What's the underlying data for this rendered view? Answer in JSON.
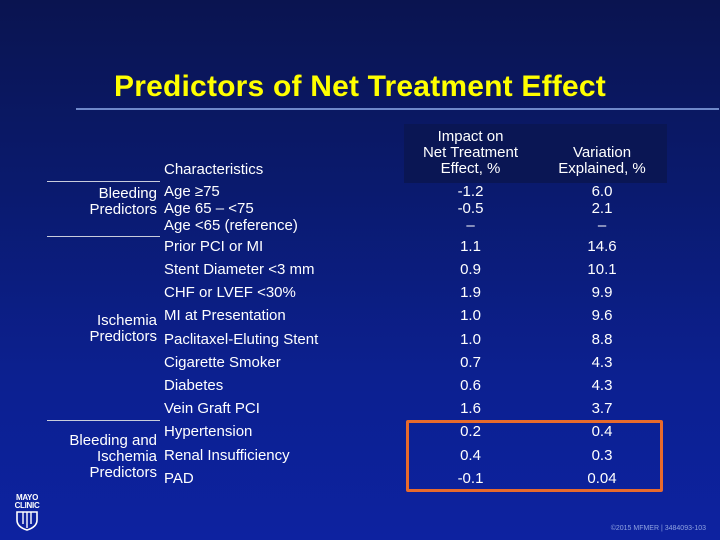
{
  "title": "Predictors of Net Treatment Effect",
  "headers": {
    "characteristics": "Characteristics",
    "impact": [
      "Impact on",
      "Net Treatment",
      "Effect, %"
    ],
    "variation": [
      "Variation",
      "Explained, %"
    ]
  },
  "groups": {
    "bleeding": [
      "Bleeding",
      "Predictors"
    ],
    "ischemia": [
      "Ischemia",
      "Predictors"
    ],
    "both": [
      "Bleeding and",
      "Ischemia",
      "Predictors"
    ]
  },
  "rows": [
    {
      "characteristic": "Age  ≥75",
      "impact": "-1.2",
      "variation": "6.0"
    },
    {
      "characteristic": "Age 65 – <75",
      "impact": "-0.5",
      "variation": "2.1"
    },
    {
      "characteristic": "Age <65 (reference)",
      "impact": "–",
      "variation": "–"
    },
    {
      "characteristic": "Prior PCI or MI",
      "impact": "1.1",
      "variation": "14.6"
    },
    {
      "characteristic": "Stent Diameter <3 mm",
      "impact": "0.9",
      "variation": "10.1"
    },
    {
      "characteristic": "CHF or LVEF <30%",
      "impact": "1.9",
      "variation": "9.9"
    },
    {
      "characteristic": "MI at Presentation",
      "impact": "1.0",
      "variation": "9.6"
    },
    {
      "characteristic": "Paclitaxel-Eluting Stent",
      "impact": "1.0",
      "variation": "8.8"
    },
    {
      "characteristic": "Cigarette Smoker",
      "impact": "0.7",
      "variation": "4.3"
    },
    {
      "characteristic": "Diabetes",
      "impact": "0.6",
      "variation": "4.3"
    },
    {
      "characteristic": "Vein Graft PCI",
      "impact": "1.6",
      "variation": "3.7"
    },
    {
      "characteristic": "Hypertension",
      "impact": "0.2",
      "variation": "0.4"
    },
    {
      "characteristic": "Renal Insufficiency",
      "impact": "0.4",
      "variation": "0.3"
    },
    {
      "characteristic": "PAD",
      "impact": "-0.1",
      "variation": "0.04"
    }
  ],
  "logo": [
    "MAYO",
    "CLINIC"
  ],
  "footer": "©2015 MFMER | 3484093-103",
  "colors": {
    "title": "#ffff00",
    "background": "#0a1a6e",
    "highlight": "#e86a2c"
  }
}
